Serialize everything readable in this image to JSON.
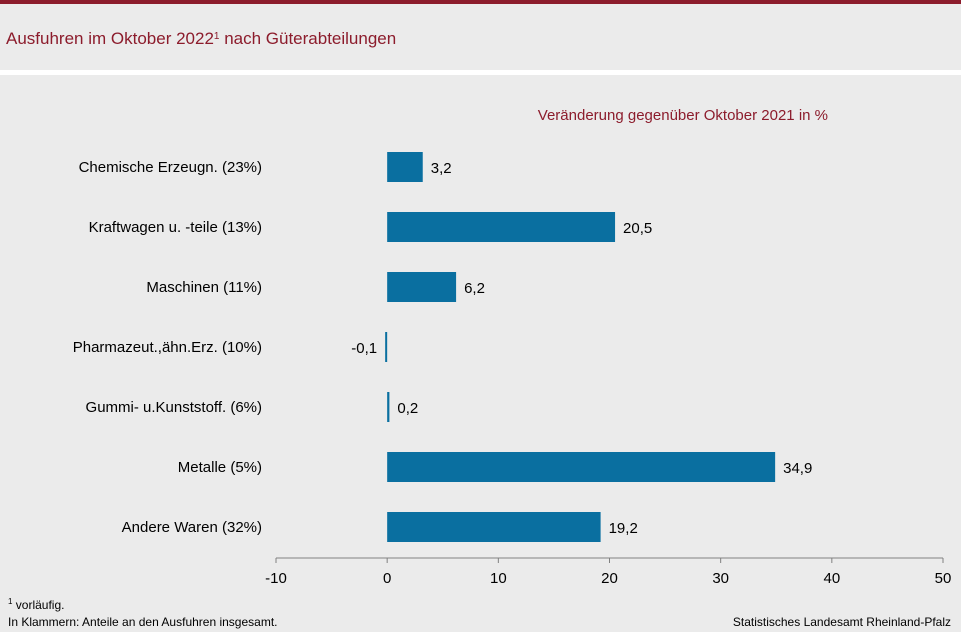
{
  "header": {
    "title": "Ausfuhren im Oktober 2022",
    "title_sup": "1",
    "title_rest": " nach Güterabteilungen"
  },
  "chart_data": {
    "type": "bar",
    "orientation": "horizontal",
    "subtitle": "Veränderung gegenüber Oktober 2021 in %",
    "categories": [
      "Chemische Erzeugn. (23%)",
      "Kraftwagen u. -teile (13%)",
      "Maschinen (11%)",
      "Pharmazeut.,ähn.Erz. (10%)",
      "Gummi- u.Kunststoff. (6%)",
      "Metalle (5%)",
      "Andere Waren (32%)"
    ],
    "values": [
      3.2,
      20.5,
      6.2,
      -0.1,
      0.2,
      34.9,
      19.2
    ],
    "value_labels": [
      "3,2",
      "20,5",
      "6,2",
      "-0,1",
      "0,2",
      "34,9",
      "19,2"
    ],
    "xlim": [
      -10,
      50
    ],
    "xticks": [
      -10,
      0,
      10,
      20,
      30,
      40,
      50
    ],
    "bar_color": "#0a6fa0",
    "grid": false
  },
  "footnotes": {
    "note1_num": "1",
    "note1_text": " vorläufig.",
    "note2": "In Klammern:  Anteile an den Ausfuhren  insgesamt.",
    "source": "Statistisches Landesamt Rheinland-Pfalz"
  },
  "colors": {
    "accent": "#8c1c2c",
    "background": "#ebebeb"
  }
}
